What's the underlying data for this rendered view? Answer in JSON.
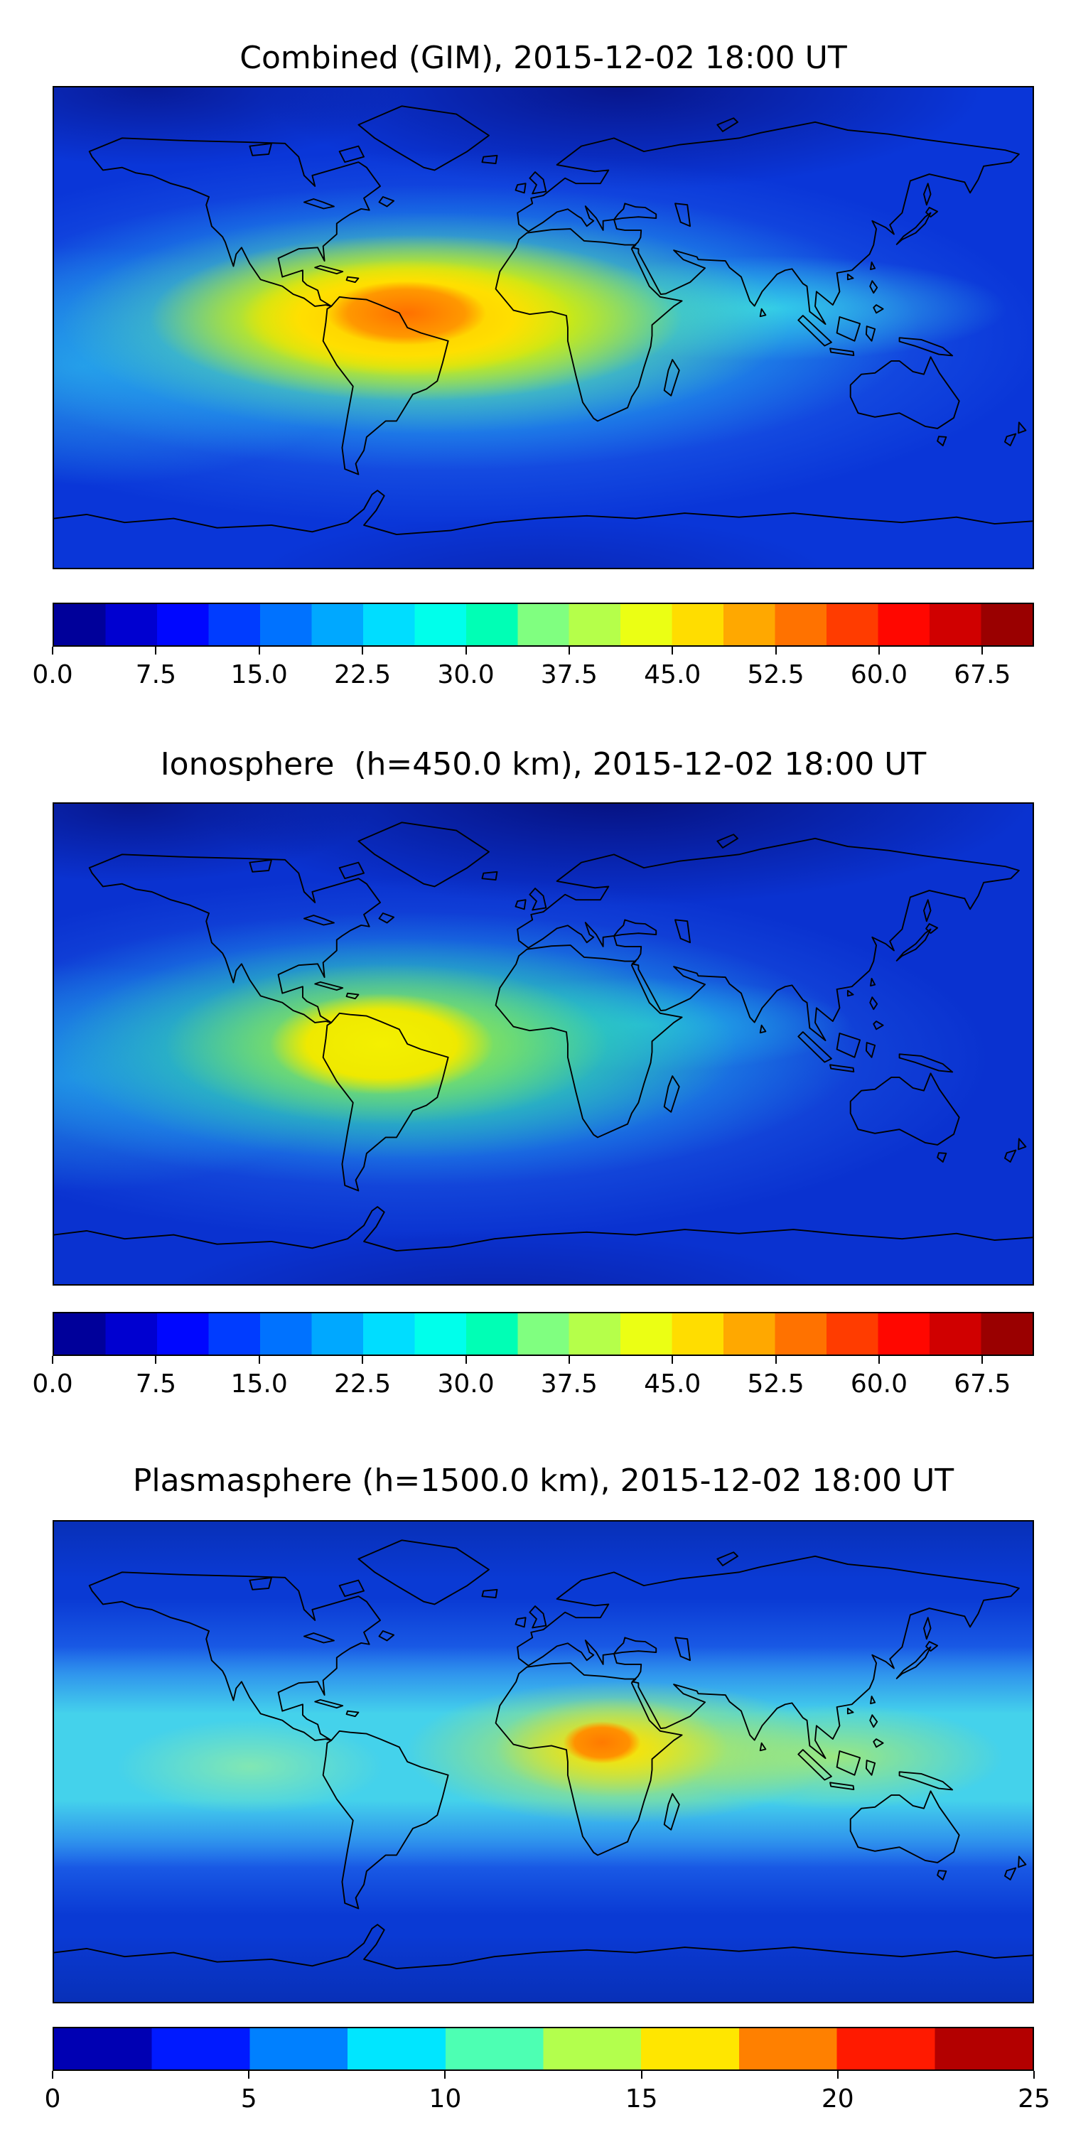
{
  "figure": {
    "background": "#ffffff",
    "coastline_color": "#000000",
    "n_panels": 3
  },
  "chart_data": [
    {
      "type": "heatmap",
      "title": "Combined (GIM), 2015-12-02 18:00 UT",
      "map": "global equirectangular world map, lon -180..180, lat -90..90, black coastlines",
      "colormap": "jet",
      "value_range": [
        0,
        71.25
      ],
      "contour_step": 3.75,
      "colorbar": {
        "orientation": "horizontal",
        "tick_labels": [
          "0.0",
          "7.5",
          "15.0",
          "22.5",
          "30.0",
          "37.5",
          "45.0",
          "52.5",
          "60.0",
          "67.5"
        ],
        "tick_positions_pct": [
          0,
          10.53,
          21.05,
          31.58,
          42.11,
          52.63,
          63.16,
          73.68,
          84.21,
          94.74
        ],
        "band_colors": [
          "#00009a",
          "#0000d0",
          "#0007ff",
          "#003cff",
          "#0072ff",
          "#00a8ff",
          "#00ddff",
          "#00ffeb",
          "#00ffb5",
          "#80ff80",
          "#b5ff4a",
          "#ebff14",
          "#ffdd00",
          "#ffa800",
          "#ff7200",
          "#ff3c00",
          "#ff0700",
          "#d00000",
          "#9a0000"
        ]
      },
      "features": {
        "peak": {
          "approx_value": 62,
          "location": "over central South America and west Atlantic",
          "color": "#ff7000"
        },
        "secondary_ridge": {
          "approx_value": 30,
          "location": "cyan band extending east across Africa toward Indian Ocean",
          "color": "#23d2e8"
        },
        "background_low": {
          "approx_value": 6,
          "location": "high northern latitudes",
          "color": "#081487"
        }
      }
    },
    {
      "type": "heatmap",
      "title": "Ionosphere  (h=450.0 km), 2015-12-02 18:00 UT",
      "map": "global equirectangular world map, lon -180..180, lat -90..90, black coastlines",
      "colormap": "jet",
      "value_range": [
        0,
        71.25
      ],
      "contour_step": 3.75,
      "colorbar": {
        "orientation": "horizontal",
        "tick_labels": [
          "0.0",
          "7.5",
          "15.0",
          "22.5",
          "30.0",
          "37.5",
          "45.0",
          "52.5",
          "60.0",
          "67.5"
        ],
        "tick_positions_pct": [
          0,
          10.53,
          21.05,
          31.58,
          42.11,
          52.63,
          63.16,
          73.68,
          84.21,
          94.74
        ],
        "band_colors": [
          "#00009a",
          "#0000d0",
          "#0007ff",
          "#003cff",
          "#0072ff",
          "#00a8ff",
          "#00ddff",
          "#00ffeb",
          "#00ffb5",
          "#80ff80",
          "#b5ff4a",
          "#ebff14",
          "#ffdd00",
          "#ffa800",
          "#ff7200",
          "#ff3c00",
          "#ff0700",
          "#d00000",
          "#9a0000"
        ]
      },
      "features": {
        "peak": {
          "approx_value": 46,
          "location": "yellow maximum over South America",
          "color": "#f4f000"
        },
        "background_low": {
          "approx_value": 5,
          "location": "high northern latitudes over Europe/Russia",
          "color": "#06107d"
        }
      }
    },
    {
      "type": "heatmap",
      "title": "Plasmasphere (h=1500.0 km), 2015-12-02 18:00 UT",
      "map": "global equirectangular world map, lon -180..180, lat -90..90, black coastlines",
      "colormap": "jet",
      "value_range": [
        0,
        25
      ],
      "contour_step": 2.5,
      "colorbar": {
        "orientation": "horizontal",
        "tick_labels": [
          "0",
          "5",
          "10",
          "15",
          "20",
          "25"
        ],
        "tick_positions_pct": [
          0,
          20,
          40,
          60,
          80,
          100
        ],
        "band_colors": [
          "#0000b3",
          "#001aff",
          "#0080ff",
          "#00e6ff",
          "#4dffb3",
          "#b3ff4d",
          "#ffe600",
          "#ff8000",
          "#ff1a00",
          "#b30000"
        ]
      },
      "features": {
        "peak": {
          "approx_value": 21,
          "location": "small orange maximum over central Africa",
          "color": "#ff7a00"
        },
        "equatorial_band": {
          "approx_value": 12,
          "location": "cyan band spanning all longitudes near the equator",
          "color": "#46d7eb"
        },
        "background_low": {
          "approx_value": 4,
          "location": "high latitudes north and south",
          "color": "#0830b8"
        }
      }
    }
  ]
}
